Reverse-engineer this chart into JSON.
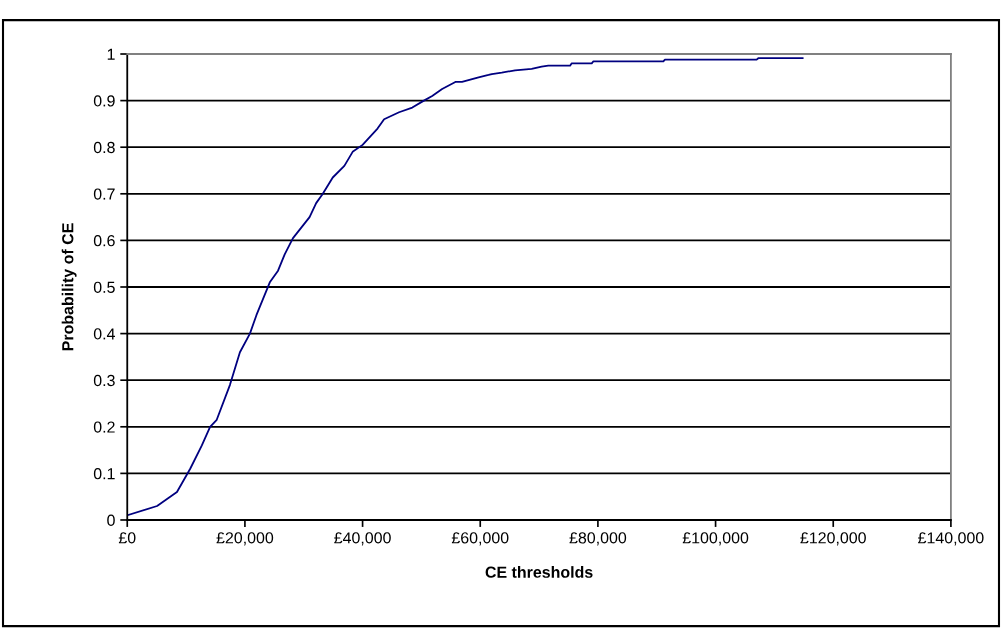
{
  "chart_data": {
    "type": "line",
    "xlabel": "CE thresholds",
    "ylabel": "Probability of CE",
    "xlim": [
      0,
      140000
    ],
    "ylim": [
      0,
      1
    ],
    "xticks": [
      {
        "value": 0,
        "label": "£0"
      },
      {
        "value": 20000,
        "label": "£20,000"
      },
      {
        "value": 40000,
        "label": "£40,000"
      },
      {
        "value": 60000,
        "label": "£60,000"
      },
      {
        "value": 80000,
        "label": "£80,000"
      },
      {
        "value": 100000,
        "label": "£100,000"
      },
      {
        "value": 120000,
        "label": "£120,000"
      },
      {
        "value": 140000,
        "label": "£140,000"
      }
    ],
    "yticks": [
      0,
      0.1,
      0.2,
      0.3,
      0.4,
      0.5,
      0.6,
      0.7,
      0.8,
      0.9,
      1
    ],
    "grid": "y",
    "marker": "none",
    "line_style": "solid",
    "series": [
      {
        "color": "#000080",
        "x": [
          0,
          5070,
          8450,
          10700,
          12680,
          14080,
          15210,
          17460,
          19150,
          20850,
          21970,
          24230,
          25630,
          26760,
          28170,
          30990,
          32110,
          33240,
          34930,
          36900,
          38310,
          40000,
          42540,
          43660,
          46200,
          48450,
          50420,
          51830,
          53520,
          55770,
          56900,
          59720,
          61410,
          61970,
          63660,
          65920,
          68740,
          70430,
          71560,
          75270,
          75550,
          78950,
          79230,
          91120,
          91400,
          106980,
          107260,
          114800
        ],
        "values": [
          0.01,
          0.03,
          0.06,
          0.11,
          0.16,
          0.2,
          0.215,
          0.29,
          0.36,
          0.4,
          0.44,
          0.51,
          0.535,
          0.57,
          0.605,
          0.65,
          0.68,
          0.7,
          0.735,
          0.76,
          0.79,
          0.805,
          0.84,
          0.86,
          0.875,
          0.885,
          0.9,
          0.91,
          0.925,
          0.94,
          0.94,
          0.95,
          0.955,
          0.957,
          0.96,
          0.965,
          0.968,
          0.973,
          0.975,
          0.975,
          0.98,
          0.98,
          0.984,
          0.984,
          0.988,
          0.988,
          0.991,
          0.991
        ]
      }
    ]
  }
}
